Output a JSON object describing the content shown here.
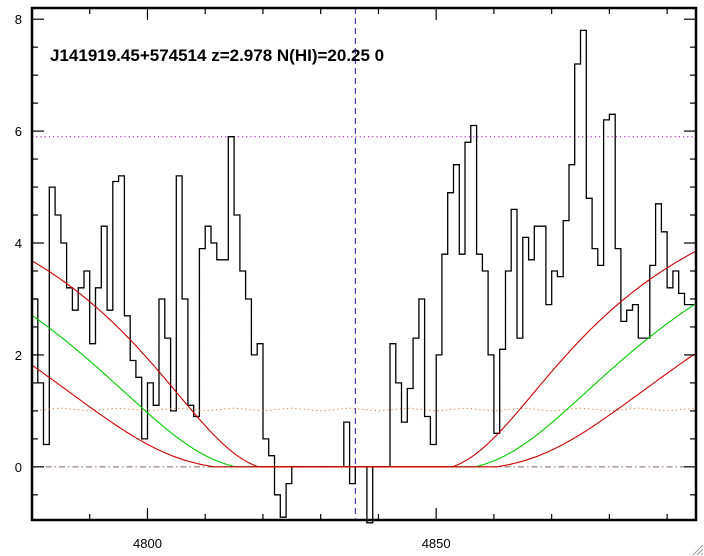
{
  "chart_data": {
    "type": "line",
    "title": "J141919.45+574514 z=2.978 N(HI)=20.25 0",
    "xlabel": "",
    "ylabel": "",
    "xlim": [
      4780,
      4895
    ],
    "ylim": [
      -0.95,
      8.2
    ],
    "x_ticks": [
      4800,
      4850
    ],
    "x_tick_labels": [
      "4800",
      "4850"
    ],
    "y_ticks": [
      0,
      2,
      4,
      6,
      8
    ],
    "y_tick_labels": [
      "0",
      "2",
      "4",
      "6",
      "8"
    ],
    "grid": false,
    "line_center": 4836,
    "continuum_level": 5.9,
    "zero_level": 0,
    "series": [
      {
        "role": "flux",
        "style": "steps",
        "color": "#000000",
        "x": [
          4780,
          4781,
          4782,
          4783,
          4784,
          4785,
          4786,
          4787,
          4788,
          4789,
          4790,
          4791,
          4792,
          4793,
          4794,
          4795,
          4796,
          4797,
          4798,
          4799,
          4800,
          4801,
          4802,
          4803,
          4804,
          4805,
          4806,
          4807,
          4808,
          4809,
          4810,
          4811,
          4812,
          4813,
          4814,
          4815,
          4816,
          4817,
          4818,
          4819,
          4820,
          4821,
          4822,
          4823,
          4824,
          4825,
          4826,
          4827,
          4828,
          4829,
          4830,
          4831,
          4832,
          4833,
          4834,
          4835,
          4836,
          4837,
          4838,
          4839,
          4840,
          4841,
          4842,
          4843,
          4844,
          4845,
          4846,
          4847,
          4848,
          4849,
          4850,
          4851,
          4852,
          4853,
          4854,
          4855,
          4856,
          4857,
          4858,
          4859,
          4860,
          4861,
          4862,
          4863,
          4864,
          4865,
          4866,
          4867,
          4868,
          4869,
          4870,
          4871,
          4872,
          4873,
          4874,
          4875,
          4876,
          4877,
          4878,
          4879,
          4880,
          4881,
          4882,
          4883,
          4884,
          4885,
          4886,
          4887,
          4888,
          4889,
          4890,
          4891,
          4892,
          4893,
          4894
        ],
        "y": [
          3.0,
          1.5,
          0.4,
          5.0,
          4.5,
          4.0,
          3.2,
          2.8,
          3.2,
          3.5,
          2.2,
          3.2,
          4.3,
          2.8,
          5.1,
          5.2,
          2.7,
          1.9,
          1.6,
          0.5,
          1.5,
          1.1,
          3.0,
          2.3,
          1.0,
          5.2,
          3.0,
          1.1,
          0.9,
          3.9,
          4.3,
          4.0,
          3.7,
          3.7,
          5.9,
          4.5,
          3.5,
          3.0,
          2.0,
          2.2,
          0.5,
          0.2,
          -0.5,
          -0.9,
          -0.3,
          0.0,
          0.0,
          0.0,
          0.0,
          0.0,
          0.0,
          0.0,
          0.0,
          0.0,
          0.8,
          -0.3,
          0.0,
          0.0,
          -1.0,
          0.0,
          0.0,
          0.0,
          2.2,
          1.5,
          0.8,
          1.4,
          2.3,
          3.0,
          0.9,
          0.4,
          2.0,
          3.8,
          4.9,
          5.4,
          3.8,
          5.8,
          6.1,
          3.8,
          3.5,
          2.0,
          0.6,
          2.1,
          3.5,
          4.6,
          2.3,
          4.1,
          3.7,
          4.3,
          4.3,
          2.9,
          3.5,
          3.4,
          4.4,
          5.4,
          7.2,
          7.8,
          4.8,
          3.9,
          3.6,
          6.2,
          6.3,
          3.9,
          2.6,
          2.8,
          2.9,
          2.3,
          2.3,
          3.6,
          4.7,
          4.2,
          3.2,
          3.5,
          3.1,
          2.9,
          2.9
        ]
      },
      {
        "role": "error",
        "style": "dotted",
        "color": "#e07830",
        "x": [
          4780,
          4785,
          4790,
          4795,
          4800,
          4805,
          4810,
          4815,
          4820,
          4825,
          4830,
          4835,
          4840,
          4845,
          4850,
          4855,
          4860,
          4865,
          4870,
          4875,
          4880,
          4885,
          4890,
          4895
        ],
        "y": [
          1.0,
          1.05,
          1.0,
          1.05,
          1.0,
          1.05,
          1.0,
          1.05,
          1.0,
          1.05,
          1.0,
          1.05,
          1.0,
          1.05,
          1.0,
          1.05,
          1.0,
          1.05,
          1.0,
          1.05,
          1.0,
          1.05,
          1.0,
          1.05
        ]
      }
    ],
    "dla_profiles": [
      {
        "role": "best-fit",
        "color": "#00cc00",
        "width": 7.5
      },
      {
        "role": "upper-bound",
        "color": "#cc0000",
        "width": 5.8
      },
      {
        "role": "lower-bound",
        "color": "#cc0000",
        "width": 9.3
      }
    ],
    "reference_lines": [
      {
        "role": "continuum",
        "orientation": "horizontal",
        "value": 5.9,
        "color": "#aa00cc",
        "style": "dotted"
      },
      {
        "role": "zero",
        "orientation": "horizontal",
        "value": 0,
        "color": "#886666",
        "style": "dash-dot"
      },
      {
        "role": "line-center",
        "orientation": "vertical",
        "value": 4836,
        "color": "#2222aa",
        "style": "dashed"
      }
    ]
  }
}
